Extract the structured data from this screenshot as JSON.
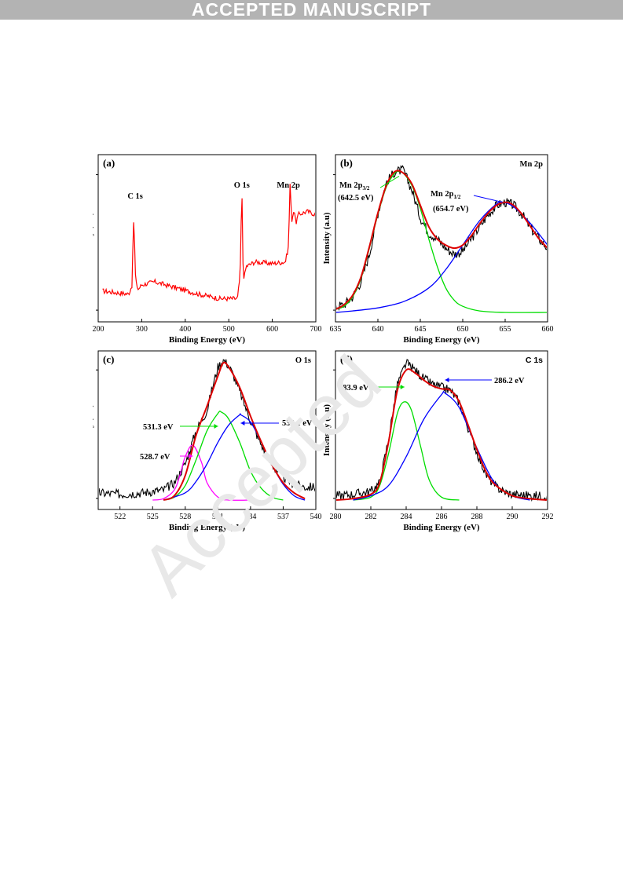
{
  "banner": {
    "text": "ACCEPTED MANUSCRIPT"
  },
  "watermark": {
    "text": "Accepted"
  },
  "chart_data": [
    {
      "type": "line",
      "panel_label": "(a)",
      "xlabel": "Binding Energy (eV)",
      "ylabel": "Intensity (a.u)",
      "xlim": [
        200,
        700
      ],
      "xticks": [
        200,
        300,
        400,
        500,
        600,
        700
      ],
      "ylim": [
        0,
        100
      ],
      "series": [
        {
          "color": "#ff0000",
          "x": [
            210,
            240,
            270,
            278,
            281,
            283,
            286,
            292,
            300,
            330,
            380,
            430,
            480,
            520,
            526,
            528,
            530,
            532,
            535,
            540,
            560,
            600,
            630,
            638,
            640,
            642,
            645,
            650,
            654,
            660,
            680,
            700
          ],
          "y": [
            14,
            13,
            12,
            18,
            62,
            50,
            20,
            15,
            18,
            20,
            16,
            12,
            9,
            9,
            24,
            50,
            88,
            35,
            22,
            30,
            33,
            32,
            33,
            44,
            90,
            75,
            60,
            68,
            58,
            64,
            66,
            64
          ]
        }
      ],
      "annotations": [
        {
          "text": "C 1s",
          "x": 285,
          "y": 68
        },
        {
          "text": "O 1s",
          "x": 530,
          "y": 92
        },
        {
          "text": "Mn 2p",
          "x": 640,
          "y": 92
        }
      ]
    },
    {
      "type": "line",
      "panel_label": "(b)",
      "corner_label": "Mn 2p",
      "xlabel": "Binding Energy (eV)",
      "ylabel": "Intensity (a.u)",
      "xlim": [
        635,
        660
      ],
      "xticks": [
        635,
        640,
        645,
        650,
        655,
        660
      ],
      "ylim": [
        0,
        100
      ],
      "series": [
        {
          "color": "#000000",
          "x": [
            635,
            636,
            637,
            638,
            639,
            640,
            641,
            642,
            643,
            644,
            645,
            646,
            647,
            648,
            649,
            650,
            651,
            652,
            653,
            654,
            655,
            656,
            657,
            658,
            659,
            660
          ],
          "y": [
            4,
            5,
            10,
            20,
            38,
            65,
            85,
            92,
            93,
            80,
            62,
            52,
            48,
            42,
            38,
            40,
            48,
            56,
            64,
            70,
            72,
            70,
            64,
            55,
            48,
            42
          ]
        },
        {
          "color": "#00dd00",
          "x": [
            635,
            636,
            637,
            638,
            639,
            640,
            641,
            642,
            642.5,
            643,
            644,
            645,
            646,
            647,
            648,
            649,
            650,
            652,
            655,
            660
          ],
          "y": [
            2,
            4,
            10,
            22,
            42,
            64,
            82,
            91,
            92,
            91,
            83,
            68,
            48,
            30,
            16,
            8,
            4,
            1,
            0,
            0
          ]
        },
        {
          "color": "#0000ff",
          "x": [
            635,
            637,
            640,
            643,
            646,
            648,
            650,
            652,
            654,
            654.7,
            656,
            658,
            660
          ],
          "y": [
            0,
            1,
            3,
            7,
            16,
            28,
            44,
            60,
            71,
            72,
            69,
            58,
            44
          ]
        },
        {
          "color": "#dd0000",
          "x": [
            635,
            636,
            637,
            638,
            639,
            640,
            641,
            642,
            643,
            644,
            645,
            646,
            647,
            648,
            649,
            650,
            651,
            652,
            653,
            654,
            655,
            656,
            657,
            658,
            659,
            660
          ],
          "y": [
            2,
            5,
            11,
            23,
            43,
            65,
            83,
            92,
            91,
            84,
            70,
            56,
            48,
            44,
            42,
            44,
            50,
            58,
            65,
            70,
            72,
            70,
            64,
            56,
            48,
            42
          ]
        }
      ],
      "annotations": [
        {
          "text": "Mn 2p",
          "sub": "3/2",
          "text2": "(642.5 eV)"
        },
        {
          "text": "Mn 2p",
          "sub": "1/2",
          "text2": "(654.7 eV)"
        }
      ]
    },
    {
      "type": "line",
      "panel_label": "(c)",
      "corner_label": "O 1s",
      "xlabel": "Binding Energy (eV)",
      "ylabel": "Intensity (a.u)",
      "xlim": [
        520,
        540
      ],
      "xticks": [
        522,
        525,
        528,
        531,
        534,
        537,
        540
      ],
      "ylim": [
        0,
        100
      ],
      "series": [
        {
          "color": "#000000",
          "x": [
            520,
            522,
            524,
            525,
            526,
            527,
            528,
            529,
            530,
            530.5,
            531,
            531.5,
            532,
            532.5,
            533,
            534,
            535,
            536,
            537,
            538,
            539,
            540
          ],
          "y": [
            5,
            4,
            5,
            6,
            7,
            12,
            25,
            48,
            62,
            78,
            92,
            97,
            93,
            85,
            75,
            55,
            38,
            24,
            16,
            11,
            9,
            9
          ]
        },
        {
          "color": "#ff00ff",
          "x": [
            525,
            526,
            527,
            527.5,
            528,
            528.7,
            529.5,
            530,
            531,
            532,
            534
          ],
          "y": [
            0,
            1,
            7,
            17,
            30,
            38,
            26,
            12,
            2,
            0,
            0
          ]
        },
        {
          "color": "#00dd00",
          "x": [
            526,
            527,
            528,
            529,
            530,
            531,
            531.3,
            532,
            533,
            534,
            535,
            536,
            537
          ],
          "y": [
            0,
            2,
            10,
            28,
            48,
            60,
            61,
            56,
            40,
            20,
            8,
            2,
            0
          ]
        },
        {
          "color": "#0000ff",
          "x": [
            526,
            528,
            529,
            530,
            531,
            532,
            533,
            533.1,
            534,
            535,
            536,
            537,
            538,
            539
          ],
          "y": [
            0,
            5,
            13,
            25,
            40,
            52,
            59,
            59,
            54,
            40,
            24,
            11,
            3,
            0
          ]
        },
        {
          "color": "#dd0000",
          "x": [
            526,
            527,
            528,
            529,
            530,
            531,
            531.5,
            532,
            533,
            534,
            535,
            536,
            537,
            538,
            539
          ],
          "y": [
            0,
            3,
            17,
            45,
            65,
            86,
            95,
            92,
            78,
            58,
            40,
            24,
            12,
            5,
            1
          ]
        }
      ],
      "annotations": [
        {
          "text": "531.3 eV"
        },
        {
          "text": "533.1 eV"
        },
        {
          "text": "528.7 eV"
        }
      ]
    },
    {
      "type": "line",
      "panel_label": "(d)",
      "corner_label": "C 1s",
      "xlabel": "Binding Energy (eV)",
      "ylabel": "Intensity (a.u)",
      "xlim": [
        280,
        292
      ],
      "xticks": [
        280,
        282,
        284,
        286,
        288,
        290,
        292
      ],
      "ylim": [
        0,
        100
      ],
      "series": [
        {
          "color": "#000000",
          "x": [
            280,
            281,
            282,
            282.5,
            283,
            283.5,
            284,
            284.5,
            285,
            285.5,
            286,
            286.5,
            287,
            287.5,
            288,
            288.5,
            289,
            289.5,
            290,
            291,
            292
          ],
          "y": [
            3,
            4,
            6,
            12,
            42,
            80,
            95,
            90,
            84,
            80,
            78,
            76,
            68,
            50,
            33,
            18,
            10,
            6,
            4,
            3,
            3
          ]
        },
        {
          "color": "#00dd00",
          "x": [
            281,
            282,
            282.5,
            283,
            283.5,
            283.9,
            284.3,
            284.8,
            285.3,
            286,
            287
          ],
          "y": [
            0,
            2,
            10,
            32,
            60,
            68,
            62,
            38,
            14,
            2,
            0
          ]
        },
        {
          "color": "#0000ff",
          "x": [
            281,
            282,
            283,
            284,
            285,
            286,
            286.2,
            287,
            288,
            289,
            290,
            291
          ],
          "y": [
            0,
            3,
            10,
            30,
            56,
            73,
            74,
            64,
            36,
            12,
            3,
            0
          ]
        },
        {
          "color": "#dd0000",
          "x": [
            280,
            281,
            282,
            282.5,
            283,
            283.5,
            284,
            284.5,
            285,
            285.5,
            286,
            286.5,
            287,
            287.5,
            288,
            288.5,
            289,
            290,
            291,
            292
          ],
          "y": [
            0,
            1,
            4,
            12,
            40,
            76,
            90,
            88,
            83,
            79,
            77,
            76,
            68,
            52,
            35,
            20,
            11,
            3,
            1,
            0
          ]
        }
      ],
      "annotations": [
        {
          "text": "283.9 eV"
        },
        {
          "text": "286.2 eV"
        }
      ]
    }
  ]
}
